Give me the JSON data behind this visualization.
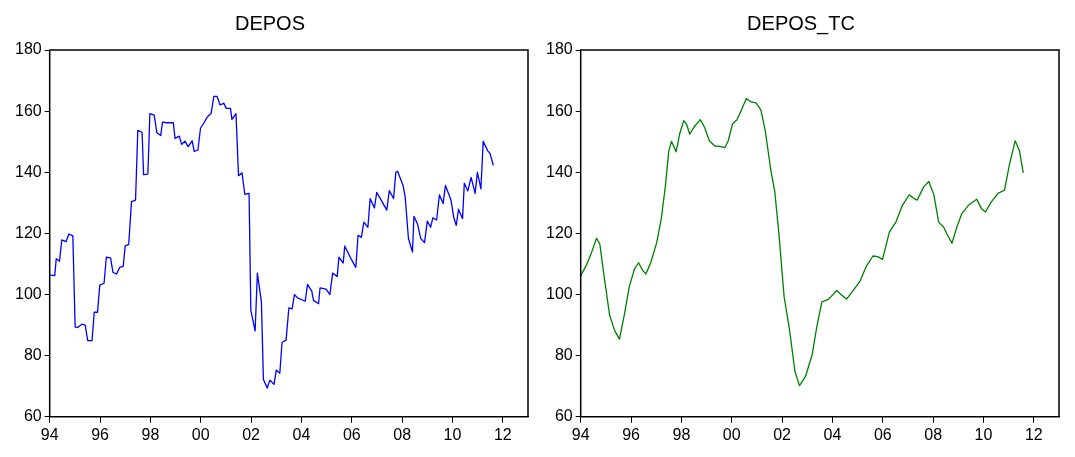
{
  "chart_data": [
    {
      "type": "line",
      "title": "DEPOS",
      "xlim": [
        1994,
        2013
      ],
      "xticks": [
        {
          "value": 1994,
          "label": "94"
        },
        {
          "value": 1996,
          "label": "96"
        },
        {
          "value": 1998,
          "label": "98"
        },
        {
          "value": 2000,
          "label": "00"
        },
        {
          "value": 2002,
          "label": "02"
        },
        {
          "value": 2004,
          "label": "04"
        },
        {
          "value": 2006,
          "label": "06"
        },
        {
          "value": 2008,
          "label": "08"
        },
        {
          "value": 2010,
          "label": "10"
        },
        {
          "value": 2012,
          "label": "12"
        }
      ],
      "ylim": [
        60,
        180
      ],
      "yticks": [
        60,
        80,
        100,
        120,
        140,
        160,
        180
      ],
      "grid": false,
      "legend": false,
      "marker": "none",
      "line_style": "solid",
      "x": [
        1994.0,
        1994.2,
        1994.26,
        1994.39,
        1994.48,
        1994.65,
        1994.76,
        1994.92,
        1995.01,
        1995.11,
        1995.28,
        1995.41,
        1995.51,
        1995.68,
        1995.77,
        1995.9,
        1995.99,
        1996.16,
        1996.25,
        1996.42,
        1996.51,
        1996.66,
        1996.78,
        1996.92,
        1997.0,
        1997.14,
        1997.25,
        1997.41,
        1997.5,
        1997.67,
        1997.73,
        1997.9,
        1997.98,
        1998.15,
        1998.26,
        1998.41,
        1998.48,
        1998.65,
        1998.91,
        1998.98,
        1999.15,
        1999.24,
        1999.37,
        1999.5,
        1999.66,
        1999.74,
        1999.89,
        1999.99,
        2000.13,
        2000.26,
        2000.41,
        2000.52,
        2000.65,
        2000.77,
        2000.92,
        2001.01,
        2001.18,
        2001.24,
        2001.4,
        2001.5,
        2001.64,
        2001.75,
        2001.92,
        2001.99,
        2002.16,
        2002.25,
        2002.41,
        2002.49,
        2002.64,
        2002.75,
        2002.91,
        2003.0,
        2003.14,
        2003.23,
        2003.39,
        2003.5,
        2003.63,
        2003.72,
        2003.85,
        2004.15,
        2004.24,
        2004.41,
        2004.48,
        2004.68,
        2004.74,
        2004.98,
        2005.13,
        2005.24,
        2005.42,
        2005.49,
        2005.66,
        2005.72,
        2005.99,
        2006.16,
        2006.25,
        2006.38,
        2006.48,
        2006.64,
        2006.73,
        2006.9,
        2006.99,
        2007.23,
        2007.39,
        2007.49,
        2007.66,
        2007.75,
        2007.82,
        2008.04,
        2008.12,
        2008.25,
        2008.41,
        2008.47,
        2008.61,
        2008.74,
        2008.89,
        2009.0,
        2009.13,
        2009.22,
        2009.37,
        2009.48,
        2009.63,
        2009.72,
        2009.94,
        2010.05,
        2010.15,
        2010.24,
        2010.4,
        2010.47,
        2010.61,
        2010.74,
        2010.9,
        2010.99,
        2011.13,
        2011.22,
        2011.4,
        2011.49,
        2011.62
      ],
      "series": [
        {
          "color": "#0000ff",
          "values": [
            106.4,
            106.2,
            111.7,
            110.9,
            117.9,
            117.3,
            119.8,
            119.2,
            89.4,
            89.2,
            90.3,
            90,
            84.9,
            84.9,
            94.2,
            94.2,
            103.1,
            103.7,
            112.2,
            112,
            107.3,
            106.7,
            108.9,
            109.2,
            115.9,
            116.4,
            130.4,
            130.9,
            153.7,
            153.1,
            139.2,
            139.4,
            159.2,
            158.7,
            152.9,
            152,
            156.4,
            156.2,
            156.2,
            151.1,
            151.8,
            149.1,
            150.2,
            148.4,
            150.3,
            146.8,
            147.3,
            154.4,
            156.2,
            158.1,
            159.2,
            164.8,
            164.8,
            162,
            162.6,
            160.9,
            160.9,
            157.3,
            159.2,
            138.9,
            139.8,
            132.8,
            133.1,
            94.8,
            88.1,
            107,
            97.6,
            72.2,
            69.4,
            72,
            70.6,
            75.3,
            74.2,
            84.4,
            85.1,
            95.6,
            95.3,
            100,
            98.9,
            97.8,
            103.3,
            101.1,
            98.1,
            97,
            102.2,
            101.8,
            100,
            107,
            105.9,
            112.2,
            110.3,
            115.9,
            111.4,
            108.9,
            119.4,
            118.7,
            123.7,
            122,
            131.4,
            128.3,
            133.4,
            130,
            127.6,
            134,
            131.4,
            140,
            140.3,
            135.6,
            132,
            118.4,
            113.9,
            125.6,
            123.1,
            118.3,
            117,
            124,
            122,
            125.1,
            124.4,
            132.6,
            129.8,
            135.7,
            130.9,
            125.3,
            122.6,
            127.9,
            124.8,
            136.4,
            133.9,
            138.3,
            133.1,
            140,
            134.6,
            150.1,
            147,
            146.2,
            142.3
          ]
        }
      ]
    },
    {
      "type": "line",
      "title": "DEPOS_TC",
      "xlim": [
        1994,
        2013
      ],
      "xticks": [
        {
          "value": 1994,
          "label": "94"
        },
        {
          "value": 1996,
          "label": "96"
        },
        {
          "value": 1998,
          "label": "98"
        },
        {
          "value": 2000,
          "label": "00"
        },
        {
          "value": 2002,
          "label": "02"
        },
        {
          "value": 2004,
          "label": "04"
        },
        {
          "value": 2006,
          "label": "06"
        },
        {
          "value": 2008,
          "label": "08"
        },
        {
          "value": 2010,
          "label": "10"
        },
        {
          "value": 2012,
          "label": "12"
        }
      ],
      "ylim": [
        60,
        180
      ],
      "yticks": [
        60,
        80,
        100,
        120,
        140,
        160,
        180
      ],
      "grid": false,
      "legend": false,
      "marker": "none",
      "line_style": "solid",
      "x": [
        1994.0,
        1994.24,
        1994.43,
        1994.63,
        1994.76,
        1994.95,
        1995.15,
        1995.35,
        1995.54,
        1995.74,
        1995.93,
        1996.13,
        1996.3,
        1996.46,
        1996.59,
        1996.78,
        1997.02,
        1997.2,
        1997.37,
        1997.5,
        1997.61,
        1997.79,
        1997.93,
        1998.09,
        1998.2,
        1998.33,
        1998.51,
        1998.75,
        1998.92,
        1999.11,
        1999.33,
        1999.53,
        1999.73,
        1999.86,
        2000.03,
        2000.21,
        2000.38,
        2000.58,
        2000.77,
        2000.97,
        2001.16,
        2001.33,
        2001.56,
        2001.71,
        2001.88,
        2002.08,
        2002.3,
        2002.51,
        2002.69,
        2002.93,
        2003.19,
        2003.39,
        2003.58,
        2003.84,
        2004.17,
        2004.37,
        2004.56,
        2004.76,
        2005.09,
        2005.35,
        2005.61,
        2005.8,
        2005.99,
        2006.26,
        2006.52,
        2006.78,
        2007.05,
        2007.24,
        2007.37,
        2007.63,
        2007.83,
        2008.03,
        2008.22,
        2008.42,
        2008.55,
        2008.75,
        2008.94,
        2009.14,
        2009.4,
        2009.73,
        2009.92,
        2010.08,
        2010.31,
        2010.58,
        2010.84,
        2011.03,
        2011.26,
        2011.43,
        2011.58
      ],
      "series": [
        {
          "color": "#008000",
          "values": [
            106.2,
            109.8,
            113.7,
            118.4,
            116.5,
            104.8,
            93.2,
            88.2,
            85.4,
            93.7,
            102.6,
            108.2,
            110.4,
            107.9,
            106.7,
            110.4,
            117,
            124.8,
            135.9,
            147,
            150.1,
            146.7,
            152.5,
            156.9,
            155.8,
            152.5,
            154.9,
            157.2,
            154.7,
            150.3,
            148.6,
            148.5,
            148.1,
            150.3,
            155.8,
            157.2,
            160.3,
            164.1,
            163,
            162.7,
            160.3,
            153.6,
            140.3,
            133.7,
            119.2,
            99.3,
            88.2,
            74.9,
            70.2,
            73.2,
            80.2,
            89.9,
            97.6,
            98.4,
            101.3,
            99.8,
            98.5,
            100.6,
            104.3,
            109.3,
            112.6,
            112.4,
            111.5,
            120.4,
            123.7,
            129.2,
            132.6,
            131.4,
            130.9,
            135.3,
            137,
            132.6,
            123.7,
            122,
            119.8,
            116.8,
            122,
            126.5,
            129.2,
            131.2,
            128.1,
            127,
            130.3,
            133.1,
            134.2,
            142.5,
            150.3,
            147,
            139.8
          ]
        }
      ]
    }
  ]
}
